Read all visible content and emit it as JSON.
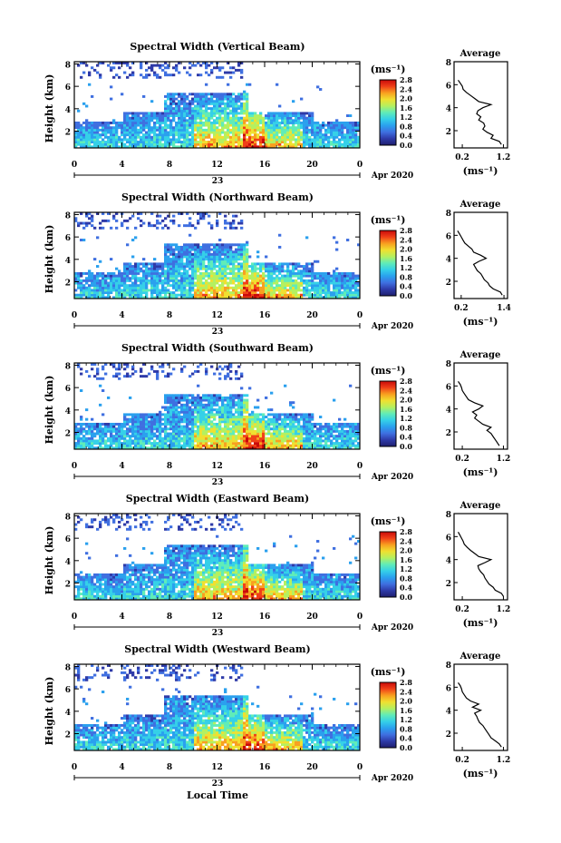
{
  "figure": {
    "local_time_label": "Local Time",
    "colorbar_ticks": [
      "0.0",
      "0.4",
      "0.8",
      "1.2",
      "1.6",
      "2.0",
      "2.4",
      "2.8"
    ],
    "colormap": [
      "#1e1e6e",
      "#2e3aa8",
      "#3f6fe0",
      "#2aa0ee",
      "#35d0e8",
      "#60ecb8",
      "#b4f060",
      "#f0e030",
      "#f8a020",
      "#f04018",
      "#c80a0a"
    ]
  },
  "chart_data": [
    {
      "type": "heatmap",
      "title": "Spectral Width (Vertical Beam)",
      "ylabel": "Height (km)",
      "yticks": [
        "2",
        "4",
        "6",
        "8"
      ],
      "xticks": [
        "0",
        "4",
        "8",
        "12",
        "16",
        "20",
        "0"
      ],
      "date_day": "23",
      "date_month": "Apr 2020",
      "colorbar_unit": "(ms⁻¹)",
      "profile": {
        "title": "Average",
        "xticks": [
          "0.2",
          "1.2"
        ],
        "xlim": [
          0.0,
          1.3
        ],
        "yticks": [
          "2",
          "4",
          "6",
          "8"
        ],
        "ylim": [
          0.5,
          8
        ],
        "xlabel": "(ms⁻¹)",
        "values": [
          1.15,
          1.1,
          0.9,
          0.95,
          0.8,
          0.7,
          0.75,
          0.72,
          0.6,
          0.65,
          0.55,
          0.58,
          0.7,
          0.9,
          0.6,
          0.5,
          0.4,
          0.3,
          0.22,
          0.2,
          0.15,
          0.1
        ]
      }
    },
    {
      "type": "heatmap",
      "title": "Spectral Width (Northward Beam)",
      "ylabel": "Height (km)",
      "yticks": [
        "2",
        "4",
        "6",
        "8"
      ],
      "xticks": [
        "0",
        "4",
        "8",
        "12",
        "16",
        "20",
        "0"
      ],
      "date_day": "23",
      "date_month": "Apr 2020",
      "colorbar_unit": "(ms⁻¹)",
      "profile": {
        "title": "Average",
        "xticks": [
          "0.2",
          "1.4"
        ],
        "xlim": [
          0.0,
          1.5
        ],
        "yticks": [
          "2",
          "4",
          "6",
          "8"
        ],
        "ylim": [
          0.5,
          8
        ],
        "xlabel": "(ms⁻¹)",
        "values": [
          1.35,
          1.3,
          1.1,
          1.0,
          0.95,
          0.85,
          0.8,
          0.75,
          0.65,
          0.6,
          0.55,
          0.7,
          0.9,
          0.75,
          0.55,
          0.5,
          0.4,
          0.3,
          0.25,
          0.2,
          0.15,
          0.1
        ]
      }
    },
    {
      "type": "heatmap",
      "title": "Spectral Width (Southward Beam)",
      "ylabel": "Height (km)",
      "yticks": [
        "2",
        "4",
        "6",
        "8"
      ],
      "xticks": [
        "0",
        "4",
        "8",
        "12",
        "16",
        "20",
        "0"
      ],
      "date_day": "23",
      "date_month": "Apr 2020",
      "colorbar_unit": "(ms⁻¹)",
      "profile": {
        "title": "Average",
        "xticks": [
          "0.2",
          "1.2"
        ],
        "xlim": [
          0.0,
          1.3
        ],
        "yticks": [
          "2",
          "4",
          "6",
          "8"
        ],
        "ylim": [
          0.5,
          8
        ],
        "xlabel": "(ms⁻¹)",
        "values": [
          1.1,
          1.05,
          1.0,
          0.95,
          0.9,
          0.8,
          0.9,
          0.7,
          0.6,
          0.5,
          0.55,
          0.45,
          0.6,
          0.7,
          0.5,
          0.35,
          0.3,
          0.25,
          0.2,
          0.18,
          0.15,
          0.1
        ]
      }
    },
    {
      "type": "heatmap",
      "title": "Spectral Width (Eastward Beam)",
      "ylabel": "Height (km)",
      "yticks": [
        "2",
        "4",
        "6",
        "8"
      ],
      "xticks": [
        "0",
        "4",
        "8",
        "12",
        "16",
        "20",
        "0"
      ],
      "date_day": "23",
      "date_month": "Apr 2020",
      "colorbar_unit": "(ms⁻¹)",
      "profile": {
        "title": "Average",
        "xticks": [
          "0.2",
          "1.2"
        ],
        "xlim": [
          0.0,
          1.3
        ],
        "yticks": [
          "2",
          "4",
          "6",
          "8"
        ],
        "ylim": [
          0.5,
          8
        ],
        "xlabel": "(ms⁻¹)",
        "values": [
          1.2,
          1.15,
          1.0,
          0.95,
          0.85,
          0.8,
          0.75,
          0.72,
          0.65,
          0.6,
          0.58,
          0.75,
          0.9,
          0.6,
          0.5,
          0.4,
          0.32,
          0.25,
          0.22,
          0.18,
          0.14,
          0.1
        ]
      }
    },
    {
      "type": "heatmap",
      "title": "Spectral Width (Westward Beam)",
      "ylabel": "Height (km)",
      "yticks": [
        "2",
        "4",
        "6",
        "8"
      ],
      "xticks": [
        "0",
        "4",
        "8",
        "12",
        "16",
        "20",
        "0"
      ],
      "date_day": "23",
      "date_month": "Apr 2020",
      "colorbar_unit": "(ms⁻¹)",
      "profile": {
        "title": "Average",
        "xticks": [
          "0.2",
          "1.2"
        ],
        "xlim": [
          0.0,
          1.3
        ],
        "yticks": [
          "2",
          "4",
          "6",
          "8"
        ],
        "ylim": [
          0.5,
          8
        ],
        "xlabel": "(ms⁻¹)",
        "values": [
          1.15,
          1.1,
          1.0,
          0.9,
          0.85,
          0.8,
          0.75,
          0.7,
          0.62,
          0.58,
          0.55,
          0.5,
          0.65,
          0.45,
          0.6,
          0.4,
          0.3,
          0.25,
          0.2,
          0.18,
          0.15,
          0.1
        ]
      }
    }
  ]
}
